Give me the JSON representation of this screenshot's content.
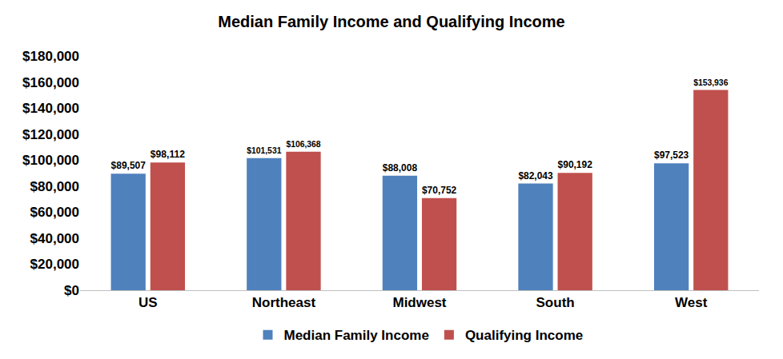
{
  "chart_data": {
    "type": "bar",
    "title": "Median Family Income and Qualifying Income",
    "categories": [
      "US",
      "Northeast",
      "Midwest",
      "South",
      "West"
    ],
    "series": [
      {
        "name": "Median Family Income",
        "color": "#4F81BD",
        "values": [
          89507,
          101531,
          88008,
          82043,
          97523
        ],
        "value_labels": [
          "$89,507",
          "$101,531",
          "$88,008",
          "$82,043",
          "$97,523"
        ]
      },
      {
        "name": "Qualifying Income",
        "color": "#C0504D",
        "values": [
          98112,
          106368,
          70752,
          90192,
          153936
        ],
        "value_labels": [
          "$98,112",
          "$106,368",
          "$70,752",
          "$90,192",
          "$153,936"
        ]
      }
    ],
    "ylim": [
      0,
      180000
    ],
    "yticks": [
      {
        "value": 0,
        "label": "$0"
      },
      {
        "value": 20000,
        "label": "$20,000"
      },
      {
        "value": 40000,
        "label": "$40,000"
      },
      {
        "value": 60000,
        "label": "$60,000"
      },
      {
        "value": 80000,
        "label": "$80,000"
      },
      {
        "value": 100000,
        "label": "$100,000"
      },
      {
        "value": 120000,
        "label": "$120,000"
      },
      {
        "value": 140000,
        "label": "$140,000"
      },
      {
        "value": 160000,
        "label": "$160,000"
      },
      {
        "value": 180000,
        "label": "$180,000"
      }
    ],
    "grid": false,
    "legend": "bottom",
    "data_labels": true
  }
}
